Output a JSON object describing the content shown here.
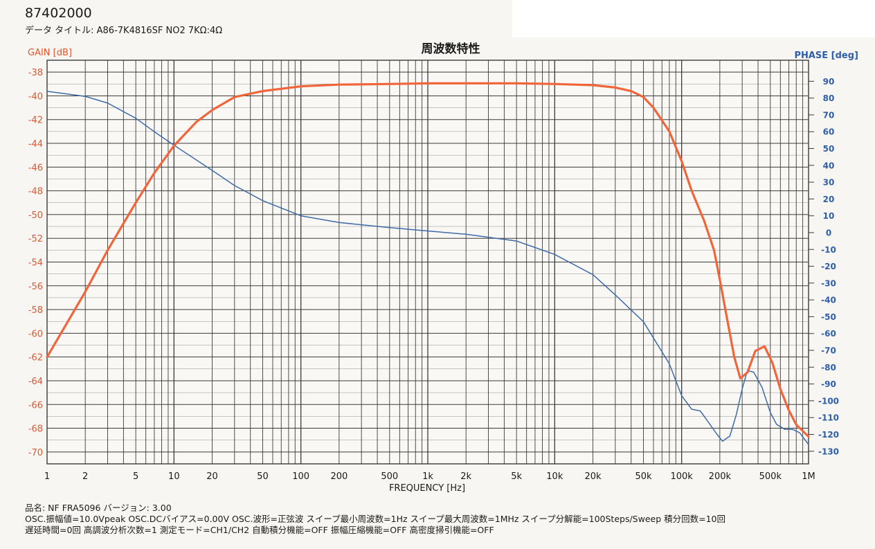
{
  "header": {
    "doc_id": "87402000",
    "data_title": "データ タイトル: A86-7K4816SF  NO2  7KΩ:4Ω"
  },
  "colors": {
    "gain": "#f2643a",
    "phase": "#3e6aa8",
    "grid": "#3a3a3a",
    "gain_axis_text": "#e0562c",
    "phase_axis_text": "#2e5ea8"
  },
  "chart_data": {
    "type": "line",
    "title": "周波数特性",
    "xlabel": "FREQUENCY [Hz]",
    "ylabel_left": "GAIN [dB]",
    "ylabel_right": "PHASE [deg]",
    "xscale": "log",
    "xlim": [
      1,
      1000000
    ],
    "ylim_left": [
      -71,
      -37
    ],
    "ylim_right": [
      -137.5,
      102.5
    ],
    "grid": true,
    "legend": "none",
    "x_ticks": [
      1,
      2,
      5,
      10,
      20,
      50,
      100,
      200,
      500,
      1000,
      2000,
      5000,
      10000,
      20000,
      50000,
      100000,
      200000,
      500000,
      1000000
    ],
    "x_tick_labels": [
      "1",
      "2",
      "5",
      "10",
      "20",
      "50",
      "100",
      "200",
      "500",
      "1k",
      "2k",
      "5k",
      "10k",
      "20k",
      "50k",
      "100k",
      "200k",
      "500k",
      "1M"
    ],
    "y_left_ticks": [
      -38,
      -40,
      -42,
      -44,
      -46,
      -48,
      -50,
      -52,
      -54,
      -56,
      -58,
      -60,
      -62,
      -64,
      -66,
      -68,
      -70
    ],
    "y_left_tick_labels": [
      "-38",
      "-40",
      "-42",
      "-44",
      "-46",
      "-48",
      "-50",
      "-52",
      "-54",
      "-56",
      "-58",
      "-60",
      "-62",
      "-64",
      "-66",
      "-68",
      "-70"
    ],
    "y_right_ticks": [
      90,
      80,
      70,
      60,
      50,
      40,
      30,
      20,
      10,
      0,
      -10,
      -20,
      -30,
      -40,
      -50,
      -60,
      -70,
      -80,
      -90,
      -100,
      -110,
      -120,
      -130
    ],
    "y_right_tick_labels": [
      "90",
      "80",
      "70",
      "60",
      "50",
      "40",
      "30",
      "20",
      "10",
      "0",
      "-10",
      "-20",
      "-30",
      "-40",
      "-50",
      "-60",
      "-70",
      "-80",
      "-90",
      "-100",
      "-110",
      "-120",
      "-130"
    ],
    "series": [
      {
        "axis": "left",
        "color": "#f2643a",
        "points": [
          [
            1,
            -62.0
          ],
          [
            2,
            -56.5
          ],
          [
            3,
            -53.0
          ],
          [
            5,
            -49.0
          ],
          [
            7,
            -46.5
          ],
          [
            10,
            -44.2
          ],
          [
            15,
            -42.2
          ],
          [
            20,
            -41.2
          ],
          [
            30,
            -40.1
          ],
          [
            50,
            -39.6
          ],
          [
            100,
            -39.2
          ],
          [
            200,
            -39.05
          ],
          [
            500,
            -39.0
          ],
          [
            1000,
            -38.95
          ],
          [
            2000,
            -38.95
          ],
          [
            5000,
            -38.95
          ],
          [
            10000,
            -39.0
          ],
          [
            20000,
            -39.1
          ],
          [
            30000,
            -39.3
          ],
          [
            40000,
            -39.6
          ],
          [
            50000,
            -40.1
          ],
          [
            60000,
            -41.0
          ],
          [
            80000,
            -43.0
          ],
          [
            100000,
            -45.5
          ],
          [
            120000,
            -48.0
          ],
          [
            150000,
            -50.5
          ],
          [
            180000,
            -53.0
          ],
          [
            200000,
            -55.5
          ],
          [
            230000,
            -59.0
          ],
          [
            260000,
            -62.0
          ],
          [
            290000,
            -63.8
          ],
          [
            330000,
            -63.3
          ],
          [
            380000,
            -61.5
          ],
          [
            450000,
            -61.1
          ],
          [
            520000,
            -62.5
          ],
          [
            600000,
            -64.7
          ],
          [
            700000,
            -66.5
          ],
          [
            800000,
            -67.7
          ],
          [
            1000000,
            -68.7
          ]
        ]
      },
      {
        "axis": "right",
        "color": "#3e6aa8",
        "points": [
          [
            1,
            84
          ],
          [
            2,
            81
          ],
          [
            3,
            77
          ],
          [
            5,
            68
          ],
          [
            7,
            60
          ],
          [
            10,
            52
          ],
          [
            20,
            37
          ],
          [
            30,
            28
          ],
          [
            50,
            19
          ],
          [
            100,
            10
          ],
          [
            200,
            6
          ],
          [
            500,
            3
          ],
          [
            1000,
            1
          ],
          [
            2000,
            -1
          ],
          [
            5000,
            -5
          ],
          [
            10000,
            -13
          ],
          [
            20000,
            -25
          ],
          [
            30000,
            -37
          ],
          [
            50000,
            -53
          ],
          [
            80000,
            -78
          ],
          [
            100000,
            -97
          ],
          [
            120000,
            -105
          ],
          [
            140000,
            -106
          ],
          [
            160000,
            -112
          ],
          [
            190000,
            -120
          ],
          [
            210000,
            -124
          ],
          [
            240000,
            -121
          ],
          [
            270000,
            -108
          ],
          [
            300000,
            -93
          ],
          [
            330000,
            -82
          ],
          [
            370000,
            -83
          ],
          [
            430000,
            -92
          ],
          [
            500000,
            -107
          ],
          [
            560000,
            -114
          ],
          [
            650000,
            -117
          ],
          [
            750000,
            -117
          ],
          [
            850000,
            -119
          ],
          [
            1000000,
            -126
          ]
        ]
      }
    ]
  },
  "footer": {
    "line1": "品名: NF FRA5096    バージョン: 3.00",
    "line2": "OSC.振幅値=10.0Vpeak  OSC.DCバイアス=0.00V  OSC.波形=正弦波  スイープ最小周波数=1Hz  スイープ最大周波数=1MHz  スイープ分解能=100Steps/Sweep  積分回数=10回",
    "line3": "遅延時間=0回  高調波分析次数=1  測定モード=CH1/CH2  自動積分機能=OFF  振幅圧縮機能=OFF  高密度掃引機能=OFF"
  }
}
